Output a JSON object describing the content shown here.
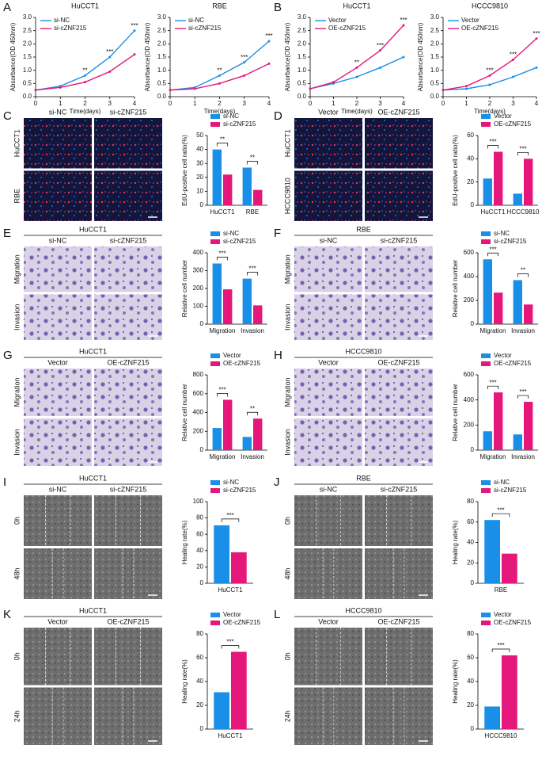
{
  "panel_letters": [
    "A",
    "B",
    "C",
    "D",
    "E",
    "F",
    "G",
    "H",
    "I",
    "J",
    "K",
    "L"
  ],
  "image_grids": [
    {
      "columns": [
        "si-NC",
        "si-cZNF215"
      ],
      "rows": [
        "HuCCT1",
        "RBE"
      ]
    },
    {
      "columns": [
        "Vector",
        "OE-cZNF215"
      ],
      "rows": [
        "HuCCT1",
        "HCCC9810"
      ]
    },
    {
      "header": "HuCCT1",
      "columns": [
        "si-NC",
        "si-cZNF215"
      ],
      "rows": [
        "Migration",
        "Invasion"
      ]
    },
    {
      "header": "RBE",
      "columns": [
        "si-NC",
        "si-cZNF215"
      ],
      "rows": [
        "Migration",
        "Invasion"
      ]
    },
    {
      "header": "HuCCT1",
      "columns": [
        "Vector",
        "OE-cZNF215"
      ],
      "rows": [
        "Migration",
        "Invasion"
      ]
    },
    {
      "header": "HCCC9810",
      "columns": [
        "Vector",
        "OE-cZNF215"
      ],
      "rows": [
        "Migration",
        "Invasion"
      ]
    },
    {
      "header": "HuCCT1",
      "columns": [
        "si-NC",
        "si-cZNF215"
      ],
      "rows": [
        "0h",
        "48h"
      ]
    },
    {
      "header": "RBE",
      "columns": [
        "si-NC",
        "si-cZNF215"
      ],
      "rows": [
        "0h",
        "48h"
      ]
    },
    {
      "header": "HuCCT1",
      "columns": [
        "Vector",
        "OE-cZNF215"
      ],
      "rows": [
        "0h",
        "24h"
      ]
    },
    {
      "header": "HCCC9810",
      "columns": [
        "Vector",
        "OE-cZNF215"
      ],
      "rows": [
        "0h",
        "24h"
      ]
    }
  ],
  "chart_data": [
    {
      "type": "line",
      "title": "HuCCT1",
      "xlabel": "Time(days)",
      "ylabel": "Absorbance(OD 450nm)",
      "x": [
        0,
        1,
        2,
        3,
        4
      ],
      "xlim": [
        0,
        4
      ],
      "xticks": [
        0,
        1,
        2,
        3,
        4
      ],
      "ylim": [
        0,
        3
      ],
      "yticks": [
        {
          "value": 0,
          "label": "0.0"
        },
        0.5,
        {
          "value": 1,
          "label": "1.0"
        },
        1.5,
        {
          "value": 2,
          "label": "2.0"
        },
        2.5,
        {
          "value": 3,
          "label": "3.0"
        }
      ],
      "series": [
        {
          "name": "si-NC",
          "color": "#1a8fe8",
          "values": [
            0.25,
            0.4,
            0.8,
            1.5,
            2.5
          ]
        },
        {
          "name": "si-cZNF215",
          "color": "#e6177a",
          "values": [
            0.25,
            0.35,
            0.55,
            0.95,
            1.6
          ]
        }
      ],
      "significance": [
        null,
        null,
        "**",
        "***",
        "***"
      ]
    },
    {
      "type": "line",
      "title": "RBE",
      "xlabel": "Time(days)",
      "ylabel": "Absorbance(OD 450nm)",
      "x": [
        0,
        1,
        2,
        3,
        4
      ],
      "xlim": [
        0,
        4
      ],
      "xticks": [
        0,
        1,
        2,
        3,
        4
      ],
      "ylim": [
        0,
        3
      ],
      "yticks": [
        {
          "value": 0,
          "label": "0.0"
        },
        0.5,
        {
          "value": 1,
          "label": "1.0"
        },
        1.5,
        {
          "value": 2,
          "label": "2.0"
        },
        2.5,
        {
          "value": 3,
          "label": "3.0"
        }
      ],
      "series": [
        {
          "name": "si-NC",
          "color": "#1a8fe8",
          "values": [
            0.25,
            0.35,
            0.8,
            1.3,
            2.1
          ]
        },
        {
          "name": "si-cZNF215",
          "color": "#e6177a",
          "values": [
            0.25,
            0.3,
            0.5,
            0.8,
            1.25
          ]
        }
      ],
      "significance": [
        null,
        null,
        "**",
        "***",
        "***"
      ]
    },
    {
      "type": "line",
      "title": "HuCCT1",
      "xlabel": "Time(days)",
      "ylabel": "Absorbance(OD 450nm)",
      "x": [
        0,
        1,
        2,
        3,
        4
      ],
      "xlim": [
        0,
        4
      ],
      "xticks": [
        0,
        1,
        2,
        3,
        4
      ],
      "ylim": [
        0,
        3
      ],
      "yticks": [
        {
          "value": 0,
          "label": "0.0"
        },
        0.5,
        {
          "value": 1,
          "label": "1.0"
        },
        1.5,
        {
          "value": 2,
          "label": "2.0"
        },
        2.5,
        {
          "value": 3,
          "label": "3.0"
        }
      ],
      "series": [
        {
          "name": "Vector",
          "color": "#1a8fe8",
          "values": [
            0.3,
            0.5,
            0.75,
            1.1,
            1.5
          ]
        },
        {
          "name": "OE-cZNF215",
          "color": "#e6177a",
          "values": [
            0.3,
            0.55,
            1.1,
            1.75,
            2.7
          ]
        }
      ],
      "significance": [
        null,
        null,
        "**",
        "***",
        "***"
      ]
    },
    {
      "type": "line",
      "title": "HCCC9810",
      "xlabel": "Time(days)",
      "ylabel": "Absorbance(OD 450nm)",
      "x": [
        0,
        1,
        2,
        3,
        4
      ],
      "xlim": [
        0,
        4
      ],
      "xticks": [
        0,
        1,
        2,
        3,
        4
      ],
      "ylim": [
        0,
        3
      ],
      "yticks": [
        {
          "value": 0,
          "label": "0.0"
        },
        0.5,
        {
          "value": 1,
          "label": "1.0"
        },
        1.5,
        {
          "value": 2,
          "label": "2.0"
        },
        2.5,
        {
          "value": 3,
          "label": "3.0"
        }
      ],
      "series": [
        {
          "name": "Vector",
          "color": "#1a8fe8",
          "values": [
            0.25,
            0.3,
            0.45,
            0.75,
            1.1
          ]
        },
        {
          "name": "OE-cZNF215",
          "color": "#e6177a",
          "values": [
            0.25,
            0.4,
            0.8,
            1.4,
            2.2
          ]
        }
      ],
      "significance": [
        null,
        null,
        "***",
        "***",
        "***"
      ]
    },
    {
      "type": "bar",
      "ylabel": "EdU-positive cell ratio(%)",
      "categories": [
        "HuCCT1",
        "RBE"
      ],
      "ylim": [
        0,
        50
      ],
      "yticks": [
        0,
        10,
        20,
        30,
        40,
        50
      ],
      "series": [
        {
          "name": "si-NC",
          "color": "#1a8fe8",
          "values": [
            40,
            27
          ]
        },
        {
          "name": "si-cZNF215",
          "color": "#e6177a",
          "values": [
            22,
            11
          ]
        }
      ],
      "significance": [
        "**",
        "**"
      ]
    },
    {
      "type": "bar",
      "ylabel": "EdU-positive cell ratio(%)",
      "categories": [
        "HuCCT1",
        "HCCC9810"
      ],
      "ylim": [
        0,
        60
      ],
      "yticks": [
        0,
        20,
        40,
        60
      ],
      "series": [
        {
          "name": "Vector",
          "color": "#1a8fe8",
          "values": [
            23,
            10
          ]
        },
        {
          "name": "OE-cZNF215",
          "color": "#e6177a",
          "values": [
            46,
            40
          ]
        }
      ],
      "significance": [
        "***",
        "***"
      ]
    },
    {
      "type": "bar",
      "ylabel": "Relative cell number",
      "categories": [
        "Migration",
        "Invasion"
      ],
      "ylim": [
        0,
        400
      ],
      "yticks": [
        0,
        100,
        200,
        300,
        400
      ],
      "series": [
        {
          "name": "si-NC",
          "color": "#1a8fe8",
          "values": [
            340,
            255
          ]
        },
        {
          "name": "si-cZNF215",
          "color": "#e6177a",
          "values": [
            195,
            105
          ]
        }
      ],
      "significance": [
        "***",
        "***"
      ]
    },
    {
      "type": "bar",
      "ylabel": "Relative cell number",
      "categories": [
        "Migration",
        "Invasion"
      ],
      "ylim": [
        0,
        600
      ],
      "yticks": [
        0,
        200,
        400,
        600
      ],
      "series": [
        {
          "name": "si-NC",
          "color": "#1a8fe8",
          "values": [
            545,
            370
          ]
        },
        {
          "name": "si-cZNF215",
          "color": "#e6177a",
          "values": [
            265,
            165
          ]
        }
      ],
      "significance": [
        "***",
        "**"
      ]
    },
    {
      "type": "bar",
      "ylabel": "Relative cell number",
      "categories": [
        "Migration",
        "Invasion"
      ],
      "ylim": [
        0,
        800
      ],
      "yticks": [
        0,
        200,
        400,
        600,
        800
      ],
      "series": [
        {
          "name": "Vector",
          "color": "#1a8fe8",
          "values": [
            235,
            140
          ]
        },
        {
          "name": "OE-cZNF215",
          "color": "#e6177a",
          "values": [
            535,
            335
          ]
        }
      ],
      "significance": [
        "***",
        "**"
      ]
    },
    {
      "type": "bar",
      "ylabel": "Relative cell number",
      "categories": [
        "Migration",
        "Invasion"
      ],
      "ylim": [
        0,
        600
      ],
      "yticks": [
        0,
        200,
        400,
        600
      ],
      "series": [
        {
          "name": "Vector",
          "color": "#1a8fe8",
          "values": [
            150,
            125
          ]
        },
        {
          "name": "OE-cZNF215",
          "color": "#e6177a",
          "values": [
            460,
            385
          ]
        }
      ],
      "significance": [
        "***",
        "***"
      ]
    },
    {
      "type": "bar",
      "ylabel": "Healing rate(%)",
      "categories": [
        "HuCCT1"
      ],
      "ylim": [
        0,
        100
      ],
      "yticks": [
        0,
        20,
        40,
        60,
        80,
        100
      ],
      "series": [
        {
          "name": "si-NC",
          "color": "#1a8fe8",
          "values": [
            71
          ]
        },
        {
          "name": "si-cZNF215",
          "color": "#e6177a",
          "values": [
            38
          ]
        }
      ],
      "significance": [
        "***"
      ]
    },
    {
      "type": "bar",
      "ylabel": "Healing rate(%)",
      "categories": [
        "RBE"
      ],
      "ylim": [
        0,
        80
      ],
      "yticks": [
        0,
        20,
        40,
        60,
        80
      ],
      "series": [
        {
          "name": "si-NC",
          "color": "#1a8fe8",
          "values": [
            62
          ]
        },
        {
          "name": "si-cZNF215",
          "color": "#e6177a",
          "values": [
            29
          ]
        }
      ],
      "significance": [
        "***"
      ]
    },
    {
      "type": "bar",
      "ylabel": "Healing rate(%)",
      "categories": [
        "HuCCT1"
      ],
      "ylim": [
        0,
        80
      ],
      "yticks": [
        0,
        20,
        40,
        60,
        80
      ],
      "series": [
        {
          "name": "Vector",
          "color": "#1a8fe8",
          "values": [
            31
          ]
        },
        {
          "name": "OE-cZNF215",
          "color": "#e6177a",
          "values": [
            65
          ]
        }
      ],
      "significance": [
        "***"
      ]
    },
    {
      "type": "bar",
      "ylabel": "Healing rate(%)",
      "categories": [
        "HCCC9810"
      ],
      "ylim": [
        0,
        80
      ],
      "yticks": [
        0,
        20,
        40,
        60,
        80
      ],
      "series": [
        {
          "name": "Vector",
          "color": "#1a8fe8",
          "values": [
            19
          ]
        },
        {
          "name": "OE-cZNF215",
          "color": "#e6177a",
          "values": [
            62
          ]
        }
      ],
      "significance": [
        "***"
      ]
    }
  ]
}
